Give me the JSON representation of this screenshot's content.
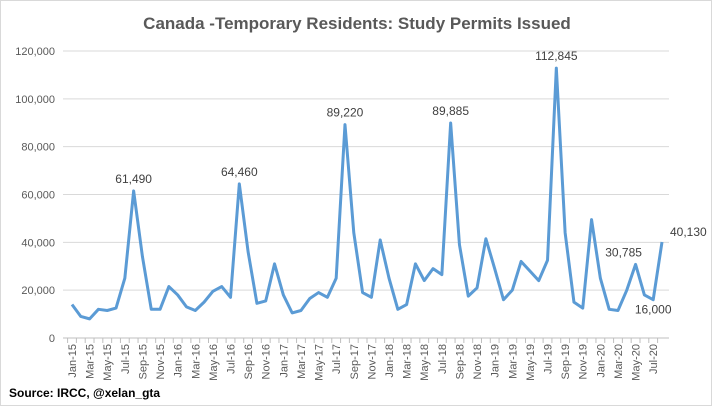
{
  "chart_data": {
    "type": "line",
    "title": "Canada -Temporary Residents: Study Permits Issued",
    "source": "Source: IRCC, @xelan_gta",
    "xlabel": "",
    "ylabel": "",
    "ylim": [
      0,
      120000
    ],
    "yticks": [
      0,
      20000,
      40000,
      60000,
      80000,
      100000,
      120000
    ],
    "ytick_labels": [
      "0",
      "20,000",
      "40,000",
      "60,000",
      "80,000",
      "100,000",
      "120,000"
    ],
    "grid": true,
    "color": "#5B9BD5",
    "x": [
      "Jan-15",
      "Feb-15",
      "Mar-15",
      "Apr-15",
      "May-15",
      "Jun-15",
      "Jul-15",
      "Aug-15",
      "Sep-15",
      "Oct-15",
      "Nov-15",
      "Dec-15",
      "Jan-16",
      "Feb-16",
      "Mar-16",
      "Apr-16",
      "May-16",
      "Jun-16",
      "Jul-16",
      "Aug-16",
      "Sep-16",
      "Oct-16",
      "Nov-16",
      "Dec-16",
      "Jan-17",
      "Feb-17",
      "Mar-17",
      "Apr-17",
      "May-17",
      "Jun-17",
      "Jul-17",
      "Aug-17",
      "Sep-17",
      "Oct-17",
      "Nov-17",
      "Dec-17",
      "Jan-18",
      "Feb-18",
      "Mar-18",
      "Apr-18",
      "May-18",
      "Jun-18",
      "Jul-18",
      "Aug-18",
      "Sep-18",
      "Oct-18",
      "Nov-18",
      "Dec-18",
      "Jan-19",
      "Feb-19",
      "Mar-19",
      "Apr-19",
      "May-19",
      "Jun-19",
      "Jul-19",
      "Aug-19",
      "Sep-19",
      "Oct-19",
      "Nov-19",
      "Dec-19",
      "Jan-20",
      "Feb-20",
      "Mar-20",
      "Apr-20",
      "May-20",
      "Jun-20",
      "Jul-20",
      "Aug-20"
    ],
    "values": [
      14000,
      9000,
      8000,
      12000,
      11500,
      12500,
      25000,
      61490,
      34000,
      12000,
      12000,
      21500,
      18000,
      13000,
      11500,
      15000,
      19500,
      21500,
      17000,
      64460,
      36000,
      14500,
      15500,
      31000,
      18000,
      10500,
      11500,
      16500,
      19000,
      17000,
      25000,
      89220,
      44000,
      19000,
      17000,
      41000,
      25000,
      12000,
      14000,
      31000,
      24000,
      29000,
      26500,
      89885,
      39000,
      17500,
      21000,
      41500,
      29000,
      16000,
      20000,
      32000,
      28000,
      24000,
      32500,
      112845,
      44000,
      15000,
      12500,
      49500,
      25000,
      12000,
      11500,
      20000,
      30785,
      18000,
      16000,
      40130
    ],
    "data_labels": [
      {
        "index": 7,
        "text": "61,490"
      },
      {
        "index": 19,
        "text": "64,460"
      },
      {
        "index": 31,
        "text": "89,220"
      },
      {
        "index": 43,
        "text": "89,885"
      },
      {
        "index": 55,
        "text": "112,845"
      },
      {
        "index": 64,
        "text": "30,785"
      },
      {
        "index": 66,
        "text": "16,000"
      },
      {
        "index": 67,
        "text": "40,130"
      }
    ]
  }
}
